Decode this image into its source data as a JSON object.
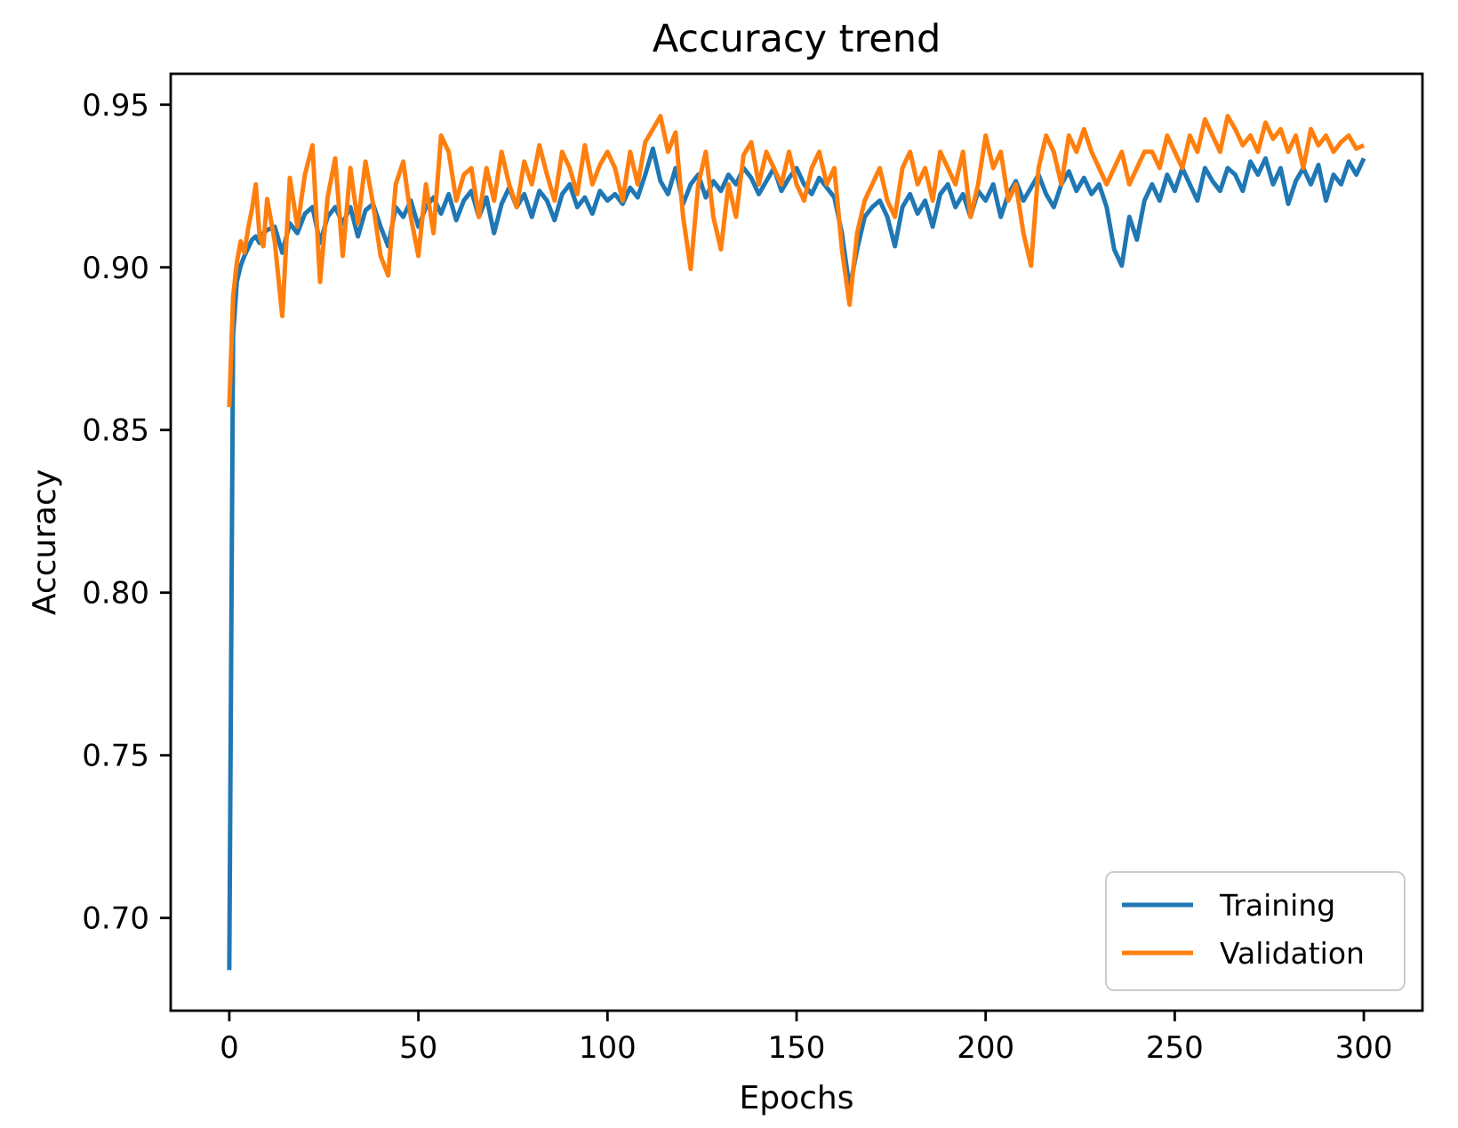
{
  "figure": {
    "background": "#ffffff",
    "text_color": "#000000",
    "spine_color": "#000000"
  },
  "chart_data": {
    "type": "line",
    "title": "Accuracy trend",
    "xlabel": "Epochs",
    "ylabel": "Accuracy",
    "xlim": [
      -15.5,
      315.5
    ],
    "ylim": [
      0.6715,
      0.9595
    ],
    "grid": false,
    "legend": {
      "position": "lower right",
      "labels": [
        "Training",
        "Validation"
      ]
    },
    "x_ticks": [
      0,
      50,
      100,
      150,
      200,
      250,
      300
    ],
    "x_tick_labels": [
      "0",
      "50",
      "100",
      "150",
      "200",
      "250",
      "300"
    ],
    "y_ticks": [
      0.7,
      0.75,
      0.8,
      0.85,
      0.9,
      0.95
    ],
    "y_tick_labels": [
      "0.70",
      "0.75",
      "0.80",
      "0.85",
      "0.90",
      "0.95"
    ],
    "x": [
      0,
      1,
      2,
      3,
      4,
      5,
      6,
      7,
      8,
      9,
      10,
      12,
      14,
      16,
      18,
      20,
      22,
      24,
      26,
      28,
      30,
      32,
      34,
      36,
      38,
      40,
      42,
      44,
      46,
      48,
      50,
      52,
      54,
      56,
      58,
      60,
      62,
      64,
      66,
      68,
      70,
      72,
      74,
      76,
      78,
      80,
      82,
      84,
      86,
      88,
      90,
      92,
      94,
      96,
      98,
      100,
      102,
      104,
      106,
      108,
      110,
      112,
      114,
      116,
      118,
      120,
      122,
      124,
      126,
      128,
      130,
      132,
      134,
      136,
      138,
      140,
      142,
      144,
      146,
      148,
      150,
      152,
      154,
      156,
      158,
      160,
      162,
      164,
      166,
      168,
      170,
      172,
      174,
      176,
      178,
      180,
      182,
      184,
      186,
      188,
      190,
      192,
      194,
      196,
      198,
      200,
      202,
      204,
      206,
      208,
      210,
      212,
      214,
      216,
      218,
      220,
      222,
      224,
      226,
      228,
      230,
      232,
      234,
      236,
      238,
      240,
      242,
      244,
      246,
      248,
      250,
      252,
      254,
      256,
      258,
      260,
      262,
      264,
      266,
      268,
      270,
      272,
      274,
      276,
      278,
      280,
      282,
      284,
      286,
      288,
      290,
      292,
      294,
      296,
      298,
      300
    ],
    "series": [
      {
        "name": "Training",
        "color": "#1f77b4",
        "values": [
          0.684,
          0.879,
          0.8955,
          0.9005,
          0.9035,
          0.906,
          0.9085,
          0.9095,
          0.9075,
          0.9105,
          0.9115,
          0.9125,
          0.9045,
          0.9135,
          0.9105,
          0.9165,
          0.9185,
          0.9075,
          0.9155,
          0.9185,
          0.9135,
          0.9185,
          0.9095,
          0.9175,
          0.9195,
          0.9125,
          0.9065,
          0.9185,
          0.9155,
          0.9205,
          0.9125,
          0.9185,
          0.9215,
          0.9165,
          0.9225,
          0.9145,
          0.9205,
          0.9235,
          0.9155,
          0.9215,
          0.9105,
          0.9195,
          0.9245,
          0.9185,
          0.9225,
          0.9155,
          0.9235,
          0.9205,
          0.9145,
          0.9225,
          0.9255,
          0.9185,
          0.9215,
          0.9165,
          0.9235,
          0.9205,
          0.9225,
          0.9195,
          0.9245,
          0.9215,
          0.9285,
          0.9365,
          0.9265,
          0.9225,
          0.9305,
          0.9195,
          0.9255,
          0.9285,
          0.9215,
          0.9265,
          0.9235,
          0.9285,
          0.9255,
          0.9305,
          0.9275,
          0.9225,
          0.9265,
          0.9305,
          0.9235,
          0.9275,
          0.9305,
          0.9255,
          0.9225,
          0.9275,
          0.9245,
          0.9215,
          0.9105,
          0.8935,
          0.9055,
          0.9155,
          0.9185,
          0.9205,
          0.9155,
          0.9065,
          0.9185,
          0.9225,
          0.9165,
          0.9205,
          0.9125,
          0.9225,
          0.9255,
          0.9185,
          0.9225,
          0.9155,
          0.9235,
          0.9205,
          0.9255,
          0.9155,
          0.9225,
          0.9265,
          0.9205,
          0.9245,
          0.9285,
          0.9225,
          0.9185,
          0.9255,
          0.9295,
          0.9235,
          0.9275,
          0.9225,
          0.9255,
          0.9185,
          0.9055,
          0.9005,
          0.9155,
          0.9085,
          0.9205,
          0.9255,
          0.9205,
          0.9285,
          0.9235,
          0.9305,
          0.9255,
          0.9205,
          0.9305,
          0.9265,
          0.9235,
          0.9305,
          0.9285,
          0.9235,
          0.9325,
          0.9285,
          0.9335,
          0.9255,
          0.9305,
          0.9195,
          0.9265,
          0.9305,
          0.9255,
          0.9315,
          0.9205,
          0.9285,
          0.9255,
          0.9325,
          0.9285,
          0.9335
        ]
      },
      {
        "name": "Validation",
        "color": "#ff7f0e",
        "values": [
          0.857,
          0.891,
          0.9015,
          0.908,
          0.9045,
          0.912,
          0.918,
          0.9255,
          0.9095,
          0.9065,
          0.921,
          0.908,
          0.885,
          0.9275,
          0.9125,
          0.9285,
          0.9375,
          0.8955,
          0.9215,
          0.9335,
          0.9035,
          0.9305,
          0.9135,
          0.9325,
          0.9195,
          0.9035,
          0.8975,
          0.9255,
          0.9325,
          0.9155,
          0.9035,
          0.9255,
          0.9105,
          0.9405,
          0.9355,
          0.9205,
          0.9285,
          0.9305,
          0.9155,
          0.9305,
          0.9205,
          0.9355,
          0.9255,
          0.9185,
          0.9325,
          0.9255,
          0.9375,
          0.9285,
          0.9205,
          0.9355,
          0.9305,
          0.9225,
          0.9375,
          0.9255,
          0.9315,
          0.9355,
          0.9305,
          0.9205,
          0.9355,
          0.9255,
          0.9385,
          0.9425,
          0.9465,
          0.9355,
          0.9415,
          0.9155,
          0.8995,
          0.9255,
          0.9355,
          0.9155,
          0.9055,
          0.9255,
          0.9155,
          0.9345,
          0.9385,
          0.9255,
          0.9355,
          0.9305,
          0.9255,
          0.9355,
          0.9255,
          0.9205,
          0.9305,
          0.9355,
          0.9255,
          0.9305,
          0.9055,
          0.8885,
          0.9105,
          0.9205,
          0.9255,
          0.9305,
          0.9205,
          0.9155,
          0.9305,
          0.9355,
          0.9255,
          0.9305,
          0.9205,
          0.9355,
          0.9305,
          0.9255,
          0.9355,
          0.9155,
          0.9255,
          0.9405,
          0.9305,
          0.9355,
          0.9205,
          0.9255,
          0.9105,
          0.9005,
          0.9305,
          0.9405,
          0.9355,
          0.9255,
          0.9405,
          0.9355,
          0.9425,
          0.9355,
          0.9305,
          0.9255,
          0.9305,
          0.9355,
          0.9255,
          0.9305,
          0.9355,
          0.9355,
          0.9305,
          0.9405,
          0.9355,
          0.9305,
          0.9405,
          0.9355,
          0.9455,
          0.9405,
          0.9355,
          0.9465,
          0.9425,
          0.9375,
          0.9405,
          0.9355,
          0.9445,
          0.9395,
          0.9425,
          0.9355,
          0.9405,
          0.9305,
          0.9425,
          0.9375,
          0.9405,
          0.9355,
          0.9385,
          0.9405,
          0.9365,
          0.9375
        ]
      }
    ]
  }
}
